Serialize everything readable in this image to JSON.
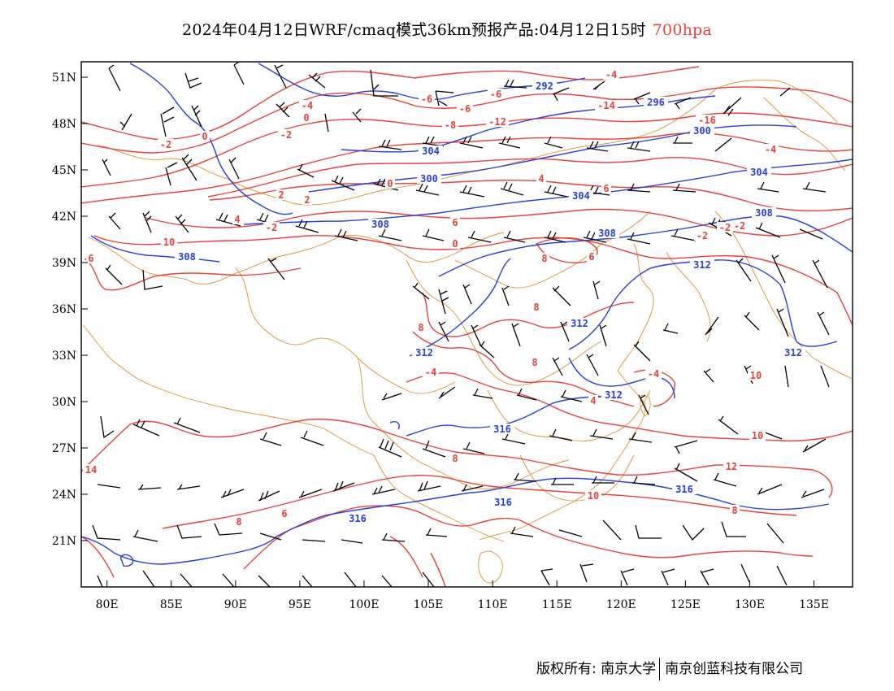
{
  "header": {
    "title_main": "2024年04月12日WRF/cmaq模式36km预报产品:04月12日15时",
    "title_level": "700hpa"
  },
  "footer": {
    "copyright": "版权所有: 南京大学",
    "company": "南京创蓝科技有限公司"
  },
  "colors": {
    "height_contour": "#2741d8",
    "temperature_contour": "#e8423c",
    "border": "#e0913a",
    "wind_barb": "#000000",
    "title_level": "#e8423c"
  },
  "map_data": {
    "lon_range": [
      78,
      138
    ],
    "lat_range": [
      18,
      52
    ],
    "x_ticks": [
      "80E",
      "85E",
      "90E",
      "95E",
      "100E",
      "105E",
      "110E",
      "115E",
      "120E",
      "125E",
      "130E",
      "135E"
    ],
    "y_ticks": [
      "51N",
      "48N",
      "45N",
      "42N",
      "39N",
      "36N",
      "33N",
      "30N",
      "27N",
      "24N",
      "21N"
    ],
    "height_labels": [
      "292",
      "296",
      "300",
      "300",
      "304",
      "304",
      "304",
      "308",
      "308",
      "308",
      "308",
      "312",
      "312",
      "312",
      "312",
      "312",
      "316",
      "316",
      "316",
      "316"
    ],
    "temperature_labels": [
      "-4",
      "-6",
      "-6",
      "-6",
      "-8",
      "-12",
      "-14",
      "-16",
      "-4",
      "0",
      "-2",
      "0",
      "-2",
      "-4",
      "-2",
      "-2",
      "-2",
      "0",
      "2",
      "2",
      "4",
      "6",
      "6",
      "4",
      "-2",
      "0",
      "10",
      "6",
      "6",
      "8",
      "8",
      "8",
      "8",
      "-4",
      "4",
      "-4",
      "10",
      "10",
      "8",
      "14",
      "12",
      "10",
      "8",
      "8",
      "6"
    ]
  }
}
